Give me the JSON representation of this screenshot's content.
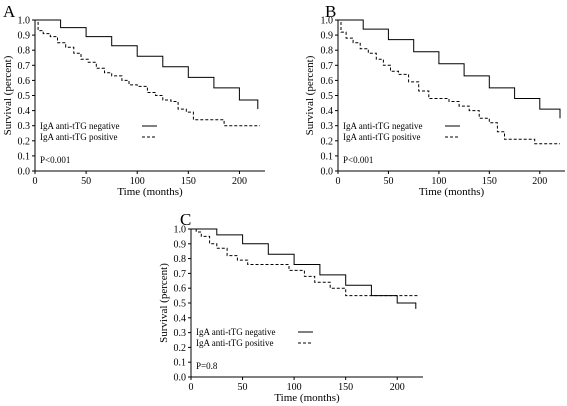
{
  "chart_data": [
    {
      "type": "line",
      "panel_label": "A",
      "xlabel": "Time (months)",
      "ylabel": "Survival (percent)",
      "xlim": [
        0,
        225
      ],
      "ylim": [
        0,
        1.0
      ],
      "xticks": [
        0,
        50,
        100,
        150,
        200
      ],
      "yticks": [
        0,
        0.1,
        0.2,
        0.3,
        0.4,
        0.5,
        0.6,
        0.7,
        0.8,
        0.9,
        1.0
      ],
      "xtick_labels": [
        "0",
        "50",
        "100",
        "150",
        "200"
      ],
      "ytick_labels": [
        "0.0",
        "0.1",
        "0.2",
        "0.3",
        "0.4",
        "0.5",
        "0.6",
        "0.7",
        "0.8",
        "0.9",
        "1.0"
      ],
      "legend": "bottom-left",
      "annotation": "P<0.001",
      "series": [
        {
          "name": "IgA anti-tTG negative",
          "style": "solid",
          "x": [
            0,
            25,
            50,
            75,
            100,
            125,
            150,
            175,
            200,
            218
          ],
          "y": [
            1.0,
            0.95,
            0.89,
            0.83,
            0.76,
            0.69,
            0.62,
            0.55,
            0.47,
            0.41
          ]
        },
        {
          "name": "IgA anti-tTG positive",
          "style": "dashed",
          "x": [
            0,
            3,
            8,
            15,
            22,
            30,
            38,
            45,
            52,
            60,
            68,
            75,
            85,
            92,
            100,
            110,
            118,
            125,
            133,
            140,
            148,
            155,
            170,
            185,
            220
          ],
          "y": [
            1.0,
            0.93,
            0.91,
            0.89,
            0.85,
            0.82,
            0.78,
            0.74,
            0.72,
            0.68,
            0.65,
            0.63,
            0.6,
            0.57,
            0.56,
            0.52,
            0.5,
            0.47,
            0.46,
            0.41,
            0.39,
            0.34,
            0.34,
            0.3,
            0.3
          ]
        }
      ]
    },
    {
      "type": "line",
      "panel_label": "B",
      "xlabel": "Time (months)",
      "ylabel": "Survival (percent)",
      "xlim": [
        0,
        225
      ],
      "ylim": [
        0,
        1.0
      ],
      "xticks": [
        0,
        50,
        100,
        150,
        200
      ],
      "yticks": [
        0,
        0.1,
        0.2,
        0.3,
        0.4,
        0.5,
        0.6,
        0.7,
        0.8,
        0.9,
        1.0
      ],
      "xtick_labels": [
        "0",
        "50",
        "100",
        "150",
        "200"
      ],
      "ytick_labels": [
        "0.0",
        "0.1",
        "0.2",
        "0.3",
        "0.4",
        "0.5",
        "0.6",
        "0.7",
        "0.8",
        "0.9",
        "1.0"
      ],
      "legend": "bottom-left",
      "annotation": "P<0.001",
      "series": [
        {
          "name": "IgA anti-tTG negative",
          "style": "solid",
          "x": [
            0,
            25,
            50,
            75,
            100,
            125,
            150,
            175,
            200,
            220
          ],
          "y": [
            1.0,
            0.94,
            0.87,
            0.79,
            0.71,
            0.63,
            0.55,
            0.48,
            0.41,
            0.35
          ]
        },
        {
          "name": "IgA anti-tTG positive",
          "style": "dashed",
          "x": [
            0,
            3,
            8,
            15,
            22,
            30,
            38,
            45,
            52,
            60,
            70,
            80,
            90,
            100,
            110,
            120,
            130,
            140,
            150,
            158,
            165,
            180,
            195,
            220
          ],
          "y": [
            1.0,
            0.92,
            0.88,
            0.85,
            0.81,
            0.78,
            0.74,
            0.7,
            0.66,
            0.64,
            0.59,
            0.53,
            0.48,
            0.48,
            0.46,
            0.43,
            0.4,
            0.35,
            0.32,
            0.26,
            0.21,
            0.21,
            0.18,
            0.18
          ]
        }
      ]
    },
    {
      "type": "line",
      "panel_label": "C",
      "xlabel": "Time (months)",
      "ylabel": "Survival (percent)",
      "xlim": [
        0,
        225
      ],
      "ylim": [
        0,
        1.0
      ],
      "xticks": [
        0,
        50,
        100,
        150,
        200
      ],
      "yticks": [
        0,
        0.1,
        0.2,
        0.3,
        0.4,
        0.5,
        0.6,
        0.7,
        0.8,
        0.9,
        1.0
      ],
      "xtick_labels": [
        "0",
        "50",
        "100",
        "150",
        "200"
      ],
      "ytick_labels": [
        "0.0",
        "0.1",
        "0.2",
        "0.3",
        "0.4",
        "0.5",
        "0.6",
        "0.7",
        "0.8",
        "0.9",
        "1.0"
      ],
      "legend": "bottom-left",
      "annotation": "P=0.8",
      "series": [
        {
          "name": "IgA anti-tTG negative",
          "style": "solid",
          "x": [
            0,
            25,
            50,
            75,
            100,
            125,
            150,
            175,
            200,
            218
          ],
          "y": [
            1.0,
            0.96,
            0.9,
            0.83,
            0.76,
            0.69,
            0.62,
            0.55,
            0.5,
            0.46
          ]
        },
        {
          "name": "IgA anti-tTG positive",
          "style": "dashed",
          "x": [
            0,
            5,
            10,
            18,
            25,
            35,
            45,
            55,
            70,
            85,
            95,
            110,
            120,
            135,
            150,
            165,
            180,
            220
          ],
          "y": [
            1.0,
            0.98,
            0.95,
            0.9,
            0.87,
            0.82,
            0.79,
            0.76,
            0.76,
            0.76,
            0.72,
            0.68,
            0.64,
            0.6,
            0.55,
            0.55,
            0.55,
            0.55
          ]
        }
      ]
    }
  ]
}
